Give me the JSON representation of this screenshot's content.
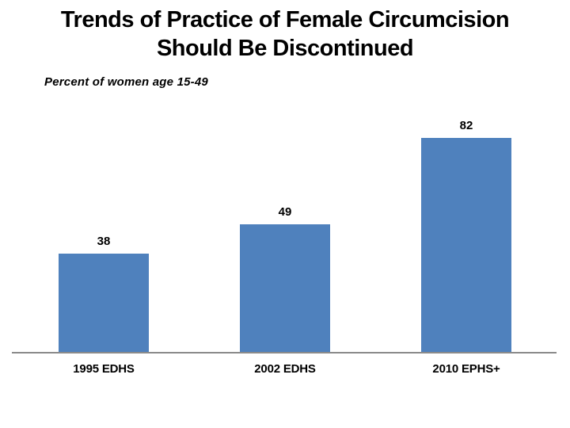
{
  "slide": {
    "title_line1": "Trends of Practice of Female Circumcision",
    "title_line2": "Should Be Discontinued",
    "subtitle": "Percent of women age 15-49"
  },
  "chart_data": {
    "type": "bar",
    "title": "Trends of Practice of Female Circumcision Should Be Discontinued",
    "subtitle": "Percent of women age 15-49",
    "categories": [
      "1995 EDHS",
      "2002 EDHS",
      "2010 EPHS+"
    ],
    "values": [
      38,
      49,
      82
    ],
    "xlabel": "",
    "ylabel": "",
    "ylim": [
      0,
      100
    ],
    "grid": false,
    "legend": false,
    "data_labels": true,
    "colors": {
      "bar_fill": "#4F81BD",
      "axis_line": "#8A8A8A",
      "text": "#000000",
      "background": "#FFFFFF"
    }
  }
}
